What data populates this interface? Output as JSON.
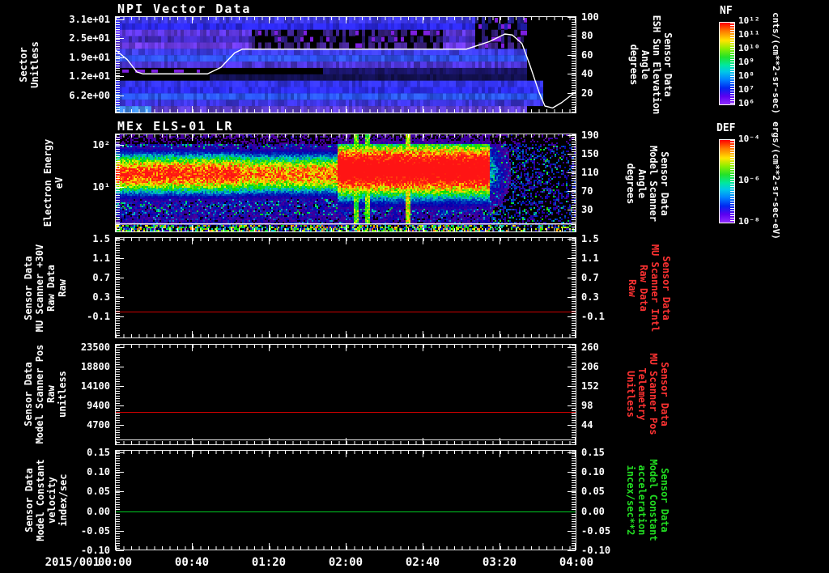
{
  "titles": {
    "panel1": "NPI Vector Data",
    "panel2": "MEx ELS-01 LR"
  },
  "xaxis": {
    "date_label": "2015/001",
    "tick_labels": [
      "00:00",
      "00:40",
      "01:20",
      "02:00",
      "02:40",
      "03:20",
      "04:00"
    ]
  },
  "colors": {
    "axis": "#ffffff",
    "red_label": "#ff3232",
    "red_line": "#cc0000",
    "green_label": "#22dd22",
    "green_line": "#00cc22"
  },
  "panels": [
    {
      "id": "npi",
      "left_label": "Sector\nUnitless",
      "left_ticks": [
        "3.1e+01",
        "2.5e+01",
        "1.9e+01",
        "1.2e+01",
        "6.2e+00"
      ],
      "right_ticks": [
        "100",
        "80",
        "60",
        "40",
        "20"
      ],
      "right_label": "Sensor Data\nESH Sun Elevation\nAngle\ndegrees",
      "colorbar": {
        "name": "NF",
        "ticks": [
          "10¹²",
          "10¹¹",
          "10¹⁰",
          "10⁹",
          "10⁸",
          "10⁷",
          "10⁶"
        ],
        "unit": "cnts/(cm**2-sr-sec)"
      }
    },
    {
      "id": "els",
      "left_label": "Electron Energy\neV",
      "left_ticks": [
        "10²",
        "10¹"
      ],
      "right_ticks": [
        "190",
        "150",
        "110",
        "70",
        "30"
      ],
      "right_label": "Sensor Data\nModel Scanner\nAngle\ndegrees",
      "colorbar": {
        "name": "DEF",
        "ticks": [
          "10⁻⁴",
          "10⁻⁶",
          "10⁻⁸"
        ],
        "unit": "ergs/(cm**2-sr-sec-eV)"
      }
    },
    {
      "id": "mu-scanner-30v",
      "left_label": "Sensor Data\nMU Scanner +30V\nRaw Data\nRaw",
      "left_ticks": [
        "1.5",
        "1.1",
        "0.7",
        "0.3",
        "-0.1"
      ],
      "right_ticks": [
        "1.5",
        "1.1",
        "0.7",
        "0.3",
        "-0.1"
      ],
      "right_label": "Sensor Data\nMU Scanner Intl\nRaw Data\nRaw"
    },
    {
      "id": "model-scanner-pos",
      "left_label": "Sensor Data\nModel Scanner Pos\nRaw\nunitless",
      "left_ticks": [
        "23500",
        "18800",
        "14100",
        "9400",
        "4700"
      ],
      "right_ticks": [
        "260",
        "206",
        "152",
        "98",
        "44"
      ],
      "right_label": "Sensor Data\nMU Scanner Pos\nTelemetry\nUnitless"
    },
    {
      "id": "model-constant",
      "left_label": "Sensor Data\nModel Constant\nvelocity\nindex/sec",
      "left_ticks": [
        "0.15",
        "0.10",
        "0.05",
        "0.00",
        "-0.05",
        "-0.10"
      ],
      "right_ticks": [
        "0.15",
        "0.10",
        "0.05",
        "0.00",
        "-0.05",
        "-0.10"
      ],
      "right_label": "Sensor Data\nModel Constant\nacceleration\nincex/sec**2"
    }
  ],
  "chart_data": [
    {
      "panel": 1,
      "type": "heatmap",
      "title": "NPI Vector Data",
      "ylabel": "Sector Unitless",
      "ytick_labels": [
        "3.1e+01",
        "2.5e+01",
        "1.9e+01",
        "1.2e+01",
        "6.2e+00"
      ],
      "x_range_utc": [
        "2015/001 00:00",
        "2015/001 04:00"
      ],
      "colorbar": {
        "name": "NF",
        "unit": "cnts/(cm**2-sr-sec)",
        "tick_labels": [
          "10^12",
          "10^11",
          "10^10",
          "10^9",
          "10^8",
          "10^7",
          "10^6"
        ]
      },
      "content_note": "horizontal blue/violet sector bands; black band near sector 12-14 with purple dashes before 00:49; dark speckled patches 01:10-02:50 and 03:06-03:33 in upper sectors; data gap (black) after ~03:34",
      "overlay_line": {
        "name": "Sensor Data ESH Sun Elevation Angle",
        "unit": "degrees",
        "color": "#ffffff",
        "ytick_values": [
          100,
          80,
          60,
          40,
          20
        ],
        "points_min_deg": [
          [
            0,
            65
          ],
          [
            6,
            55
          ],
          [
            11,
            42
          ],
          [
            14,
            40
          ],
          [
            48,
            40
          ],
          [
            55,
            47
          ],
          [
            62,
            62
          ],
          [
            66,
            66
          ],
          [
            183,
            66
          ],
          [
            195,
            74
          ],
          [
            203,
            82
          ],
          [
            207,
            81
          ],
          [
            212,
            72
          ],
          [
            216,
            50
          ],
          [
            221,
            20
          ],
          [
            224,
            6
          ],
          [
            228,
            4
          ],
          [
            233,
            10
          ],
          [
            240,
            21
          ]
        ]
      },
      "render": {
        "row_colors": [
          "#3a35e0",
          "#2b28e8",
          "#5a35d5",
          "#4029b8",
          "#6a3ae2",
          "#3c3ce8",
          "#2f50ee",
          "#4a33cc",
          "#000000",
          "#12104d",
          "#3232e6",
          "#2d2df2",
          "#2a55f2",
          "#3b33d8",
          "#5a3cc8"
        ],
        "purple_dash": "#7d1fe0",
        "dash_band_end_min": 49,
        "speckle_zones": [
          {
            "rows": [
              2,
              4
            ],
            "t": [
              70,
              170
            ]
          },
          {
            "rows": [
              0,
              4
            ],
            "t": [
              186,
              213
            ]
          }
        ],
        "blackout_start_min": 214,
        "bottom_rows_extend_min": 222,
        "cyan_corner": "#3f86e8"
      }
    },
    {
      "panel": 2,
      "type": "heatmap",
      "title": "MEx ELS-01 LR",
      "ylabel": "Electron Energy eV",
      "ytick_labels": [
        "10^2",
        "10^1"
      ],
      "right_axis": {
        "name": "Sensor Data Model Scanner Angle",
        "unit": "degrees",
        "tick_labels": [
          190,
          150,
          110,
          70,
          30
        ]
      },
      "colorbar": {
        "name": "DEF",
        "unit": "ergs/(cm**2-sr-sec-eV)",
        "tick_labels": [
          "10^-4",
          "10^-6",
          "10^-8"
        ]
      },
      "content_note": "intense electron flux band ~8-60 eV (red core ~20-35 eV) from 00:00; brighter broader red blob 02:00-03:10; sharp cutoff ~03:12 followed by sparse low-flux speckle; vertical enhancements near 02:05, 02:11, 02:32; white reference line near bottom of panel",
      "render": {
        "band_center_log10_ev": 1.33,
        "band_sigma": 0.33,
        "blob": {
          "t0_min": 115,
          "t1_min": 195,
          "center": 1.43,
          "sigma": 0.46,
          "amp": 1.28
        },
        "cutoff_min": 195,
        "streaks_min": [
          125,
          131,
          152
        ],
        "white_line_y_frac": 0.917
      }
    },
    {
      "panel": 3,
      "type": "line",
      "yticks": [
        1.5,
        1.1,
        0.7,
        0.3,
        -0.1
      ],
      "series": [
        {
          "name": "Sensor Data MU Scanner +30V Raw Data Raw",
          "axis": "left",
          "color": "#ffffff",
          "constant_value": 0.0,
          "visible": false
        },
        {
          "name": "Sensor Data MU Scanner Intl Raw Data Raw",
          "axis": "right",
          "color": "#cc0000",
          "constant_value": 0.0,
          "visible": true
        }
      ]
    },
    {
      "panel": 4,
      "type": "line",
      "left_yticks": [
        23500,
        18800,
        14100,
        9400,
        4700
      ],
      "right_yticks": [
        260,
        206,
        152,
        98,
        44
      ],
      "series": [
        {
          "name": "Sensor Data Model Scanner Pos Raw",
          "axis": "left",
          "color": "#e8e8e8",
          "constant_value": 1100,
          "visible": true
        },
        {
          "name": "Sensor Data MU Scanner Pos Telemetry",
          "axis": "right",
          "color": "#cc0000",
          "constant_value": 80,
          "visible": true
        }
      ]
    },
    {
      "panel": 5,
      "type": "line",
      "yticks": [
        0.15,
        0.1,
        0.05,
        0.0,
        -0.05,
        -0.1
      ],
      "series": [
        {
          "name": "Sensor Data Model Constant velocity",
          "axis": "left",
          "color": "#ffffff",
          "constant_value": 0.0,
          "visible": false
        },
        {
          "name": "Sensor Data Model Constant acceleration",
          "axis": "right",
          "color": "#00cc22",
          "constant_value": 0.0,
          "visible": true
        }
      ]
    }
  ]
}
